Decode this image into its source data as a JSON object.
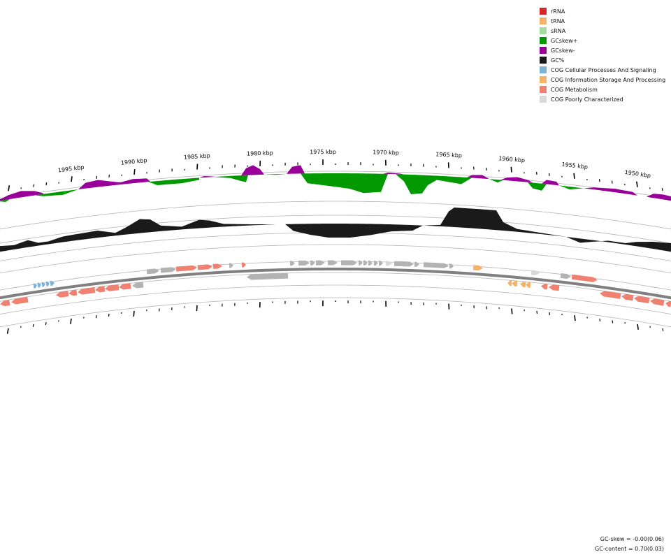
{
  "legend": {
    "items": [
      {
        "label": "rRNA",
        "color": "#d62728"
      },
      {
        "label": "tRNA",
        "color": "#f7b267"
      },
      {
        "label": "sRNA",
        "color": "#a6dba0"
      },
      {
        "label": "GCskew+",
        "color": "#009900"
      },
      {
        "label": "GCskew-",
        "color": "#990099"
      },
      {
        "label": "GC%",
        "color": "#1a1a1a"
      },
      {
        "label": "COG Cellular Processes And Signaling",
        "color": "#7fb3d5"
      },
      {
        "label": "COG Information Storage And Processing",
        "color": "#f7b267"
      },
      {
        "label": "COG Metabolism",
        "color": "#f08070"
      },
      {
        "label": "COG Poorly Characterized",
        "color": "#d9d9d9"
      }
    ]
  },
  "axis": {
    "ticks": [
      "1995 kbp",
      "1990 kbp",
      "1985 kbp",
      "1980 kbp",
      "1975 kbp",
      "1970 kbp",
      "1965 kbp",
      "1960 kbp",
      "1955 kbp",
      "1950 kbp"
    ]
  },
  "stats": {
    "gc_skew": "GC-skew = -0.00(0.06)",
    "gc_content": "GC-content = 0.70(0.03)"
  }
}
